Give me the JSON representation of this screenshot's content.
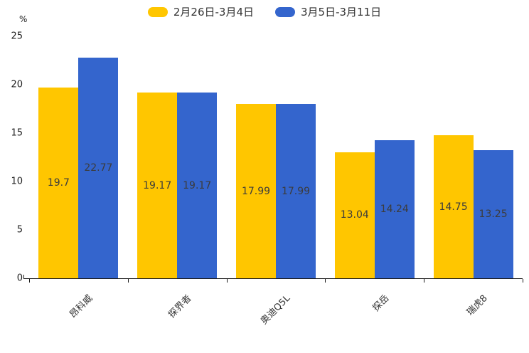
{
  "chart_data": {
    "type": "bar",
    "title": "",
    "xlabel": "",
    "ylabel": "%",
    "ylim": [
      0,
      25
    ],
    "yticks": [
      0,
      5,
      10,
      15,
      20,
      25
    ],
    "grid": false,
    "legend_position": "top",
    "categories": [
      "昂科威",
      "探界者",
      "奥迪Q5L",
      "探岳",
      "瑞虎8"
    ],
    "series": [
      {
        "name": "2月26日-3月4日",
        "color": "#FFC600",
        "values": [
          19.7,
          19.17,
          17.99,
          13.04,
          14.75
        ]
      },
      {
        "name": "3月5日-3月11日",
        "color": "#3465CD",
        "values": [
          22.77,
          19.17,
          17.99,
          14.24,
          13.25
        ]
      }
    ],
    "colors": {
      "axis": "#1a1a1a",
      "value_label": "#3c3c3c",
      "tick_label": "#222222"
    }
  }
}
